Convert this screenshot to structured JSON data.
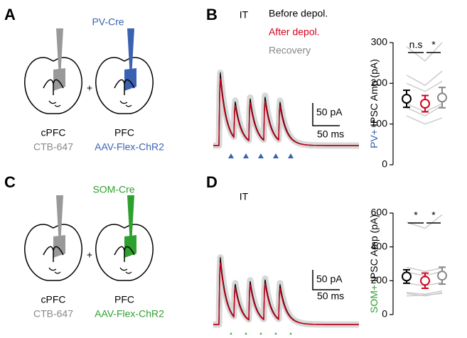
{
  "panels": {
    "A": {
      "letter": "A",
      "cre": "PV-Cre",
      "cre_color": "#3a62b0",
      "plus": "+",
      "left_region": "cPFC",
      "left_tracer": "CTB-647",
      "right_region": "PFC",
      "right_virus": "AAV-Flex-ChR2"
    },
    "B": {
      "letter": "B",
      "title": "IT",
      "legend": [
        "Before depol.",
        "After depol.",
        "Recovery"
      ],
      "scale_y": "50 pA",
      "scale_x": "50 ms"
    },
    "C": {
      "letter": "C",
      "cre": "SOM-Cre",
      "cre_color": "#2ea02e",
      "plus": "+",
      "left_region": "cPFC",
      "left_tracer": "CTB-647",
      "right_region": "PFC",
      "right_virus": "AAV-Flex-ChR2"
    },
    "D": {
      "letter": "D",
      "title": "IT",
      "scale_y": "50 pA",
      "scale_x": "50 ms"
    }
  },
  "chart_data": [
    {
      "type": "errorbar",
      "ylabel_prefix": "PV+",
      "label_color": "#3a62b0",
      "ylabel": "IPSC Amp (pA)",
      "categories": [
        null,
        null,
        null
      ],
      "values": [
        162,
        150,
        165
      ],
      "errors": [
        21,
        20,
        25
      ],
      "colors": [
        "#000000",
        "#d0021b",
        "#888888"
      ],
      "cells": [
        [
          290,
          255,
          300
        ],
        [
          220,
          195,
          230
        ],
        [
          200,
          180,
          205
        ],
        [
          150,
          130,
          150
        ],
        [
          140,
          120,
          145
        ],
        [
          120,
          100,
          115
        ]
      ],
      "cell_color": "#cccccc",
      "significance": [
        "n.s",
        "*"
      ],
      "ylim": [
        0,
        300
      ],
      "yticks": [
        0,
        100,
        200,
        300
      ]
    },
    {
      "type": "errorbar",
      "ylabel_prefix": "SOM+",
      "label_color": "#2ea02e",
      "ylabel": "IPSC Amp (pA)",
      "categories": [
        null,
        null,
        null
      ],
      "values": [
        225,
        200,
        230
      ],
      "errors": [
        40,
        45,
        50
      ],
      "colors": [
        "#000000",
        "#d0021b",
        "#888888"
      ],
      "cells": [
        [
          545,
          510,
          590
        ],
        [
          280,
          255,
          275
        ],
        [
          250,
          230,
          255
        ],
        [
          185,
          170,
          190
        ],
        [
          130,
          120,
          140
        ],
        [
          125,
          110,
          130
        ],
        [
          110,
          115,
          125
        ]
      ],
      "cell_color": "#cccccc",
      "significance": [
        "*",
        "*"
      ],
      "ylim": [
        0,
        600
      ],
      "yticks": [
        0,
        200,
        400,
        600
      ]
    }
  ]
}
